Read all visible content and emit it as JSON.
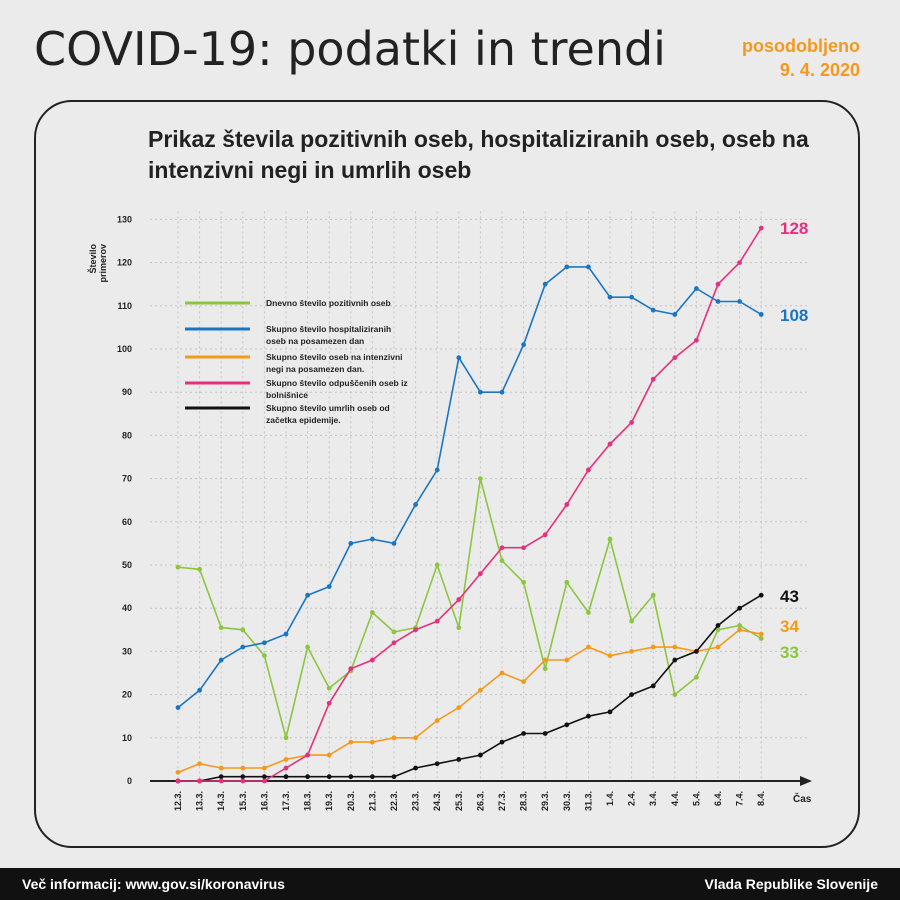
{
  "header": {
    "title": "COVID-19: podatki in trendi",
    "updated_line1": "posodobljeno",
    "updated_line2": "9. 4. 2020"
  },
  "footer": {
    "left": "Več informacij: www.gov.si/koronavirus",
    "right": "Vlada Republike Slovenije"
  },
  "chart_data": {
    "type": "line",
    "title": "Prikaz števila pozitivnih oseb, hospitaliziranih oseb, oseb na intenzivni negi in umrlih oseb",
    "ylabel": "Število primerov",
    "xlabel": "Čas",
    "ylim": [
      0,
      130
    ],
    "yticks": [
      0,
      10,
      20,
      30,
      40,
      50,
      60,
      70,
      80,
      90,
      100,
      110,
      120,
      130
    ],
    "grid": true,
    "legend_position": "upper-left",
    "categories": [
      "12.3.",
      "13.3.",
      "14.3.",
      "15.3.",
      "16.3.",
      "17.3.",
      "18.3.",
      "19.3.",
      "20.3.",
      "21.3.",
      "22.3.",
      "23.3.",
      "24.3.",
      "25.3.",
      "26.3.",
      "27.3.",
      "28.3.",
      "29.3.",
      "30.3.",
      "31.3.",
      "1.4.",
      "2.4.",
      "3.4.",
      "4.4.",
      "5.4.",
      "6.4.",
      "7.4.",
      "8.4."
    ],
    "series": [
      {
        "name": "Dnevno število pozitivnih oseb",
        "color": "#8cc63f",
        "values": [
          49.5,
          49,
          35.5,
          35,
          29,
          10,
          31,
          21.5,
          25.5,
          39,
          34.5,
          35.5,
          50,
          35.5,
          70,
          51,
          46,
          26,
          46,
          39,
          56,
          37,
          43,
          20,
          24,
          35,
          36,
          33
        ],
        "end_label": "33"
      },
      {
        "name": "Skupno število hospitaliziranih oseb na posamezen dan",
        "color": "#1a76c1",
        "values": [
          17,
          21,
          28,
          31,
          32,
          34,
          43,
          45,
          55,
          56,
          55,
          64,
          72,
          98,
          90,
          90,
          101,
          115,
          119,
          119,
          112,
          112,
          109,
          108,
          114,
          111,
          111,
          108
        ],
        "end_label": "108"
      },
      {
        "name": "Skupno število oseb na intenzivni negi na posamezen dan.",
        "color": "#f39a1e",
        "values": [
          2,
          4,
          3,
          3,
          3,
          5,
          6,
          6,
          9,
          9,
          10,
          10,
          14,
          17,
          21,
          25,
          23,
          28,
          28,
          31,
          29,
          30,
          31,
          31,
          30,
          31,
          35,
          34
        ],
        "end_label": "34"
      },
      {
        "name": "Skupno število odpuščenih oseb iz bolnišnice",
        "color": "#e6307d",
        "values": [
          0,
          0,
          0,
          0,
          0,
          3,
          6,
          18,
          26,
          28,
          32,
          35,
          37,
          42,
          48,
          54,
          54,
          57,
          64,
          72,
          78,
          83,
          93,
          98,
          102,
          115,
          120,
          128
        ],
        "end_label": "128"
      },
      {
        "name": "Skupno število umrlih oseb od začetka epidemije.",
        "color": "#111111",
        "values": [
          0,
          0,
          1,
          1,
          1,
          1,
          1,
          1,
          1,
          1,
          1,
          3,
          4,
          5,
          6,
          9,
          11,
          11,
          13,
          15,
          16,
          20,
          22,
          28,
          30,
          36,
          40,
          43
        ],
        "end_label": "43"
      }
    ]
  }
}
